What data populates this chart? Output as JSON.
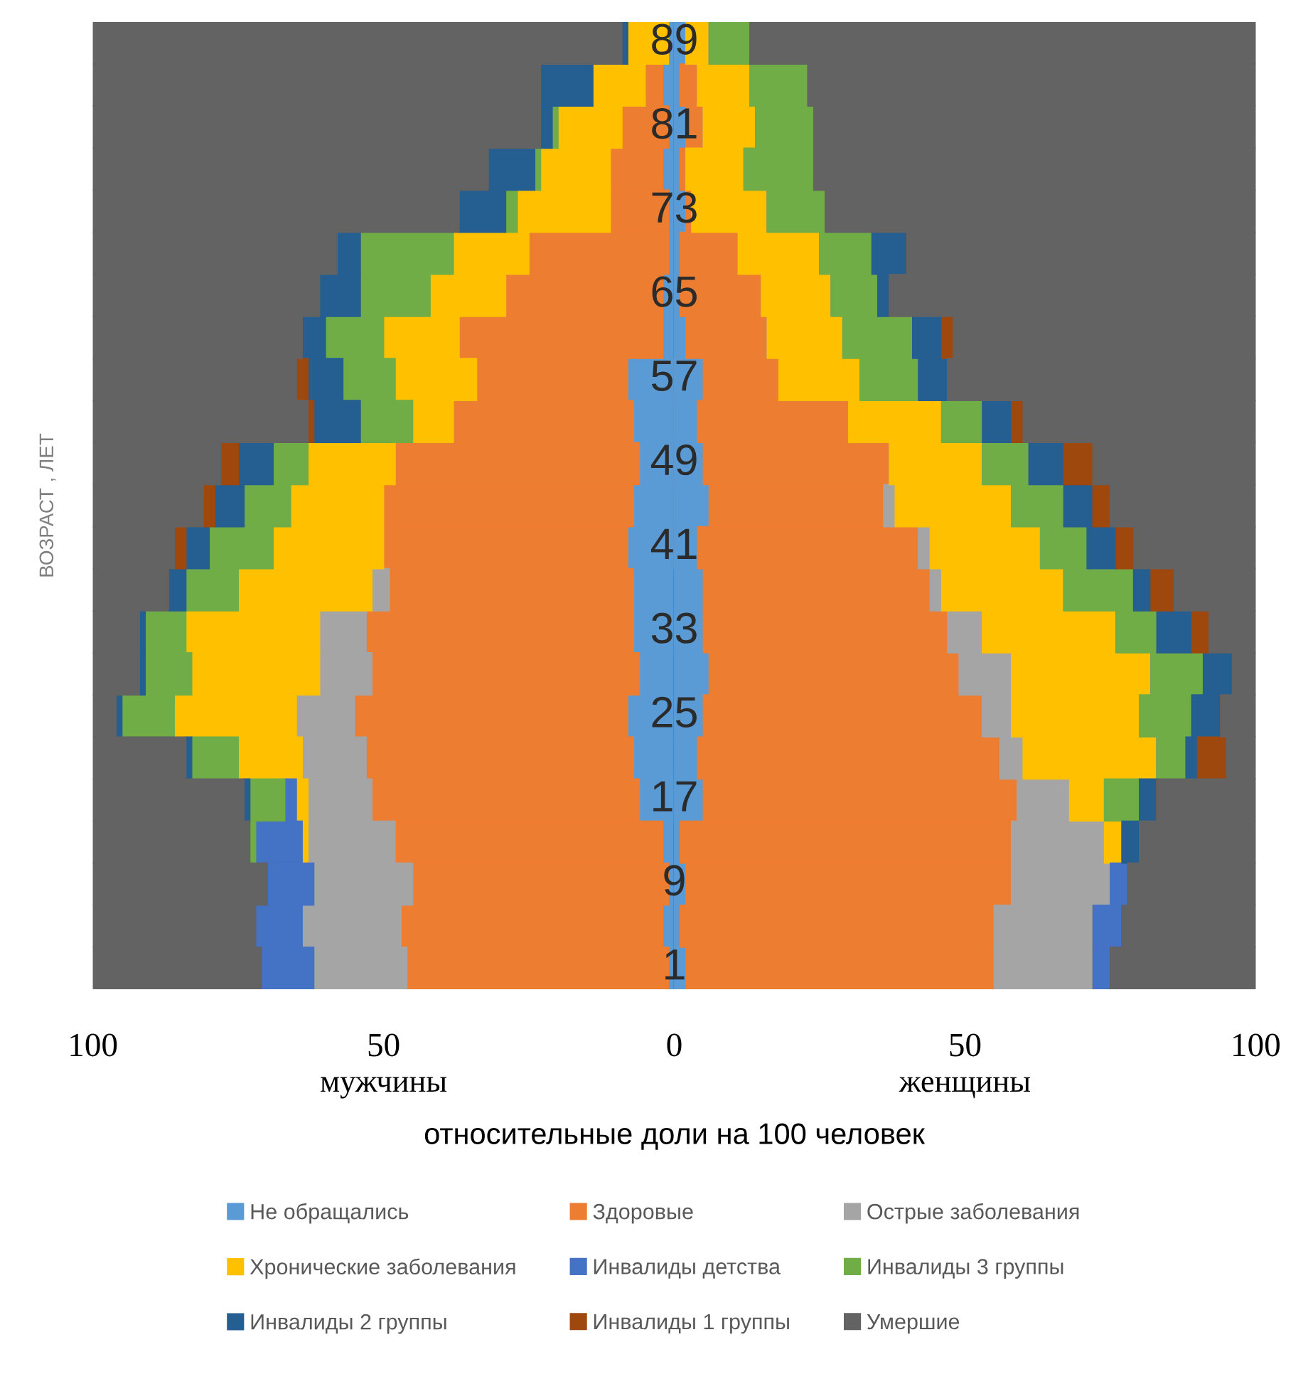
{
  "chart_data": {
    "type": "bar",
    "orientation": "horizontal",
    "stacked": true,
    "xlabel": "относительные доли на 100 человек",
    "ylabel": "ВОЗРАСТ , ЛЕТ",
    "annotations": [
      "мужчины",
      "женщины"
    ],
    "categories": [
      "89",
      null,
      "81",
      null,
      "73",
      null,
      "65",
      null,
      "57",
      null,
      "49",
      null,
      "41",
      null,
      "33",
      null,
      "25",
      null,
      "17",
      null,
      "9",
      null,
      "1"
    ],
    "xlim": [
      -100,
      100
    ],
    "xticks": [
      {
        "value": -100,
        "label": "100"
      },
      {
        "value": -50,
        "label": "50"
      },
      0,
      50,
      100
    ],
    "tick_labels": "x",
    "grid": false,
    "legend": "bottom",
    "series": [
      {
        "name": "Не обращались",
        "color": "#5b9bd5",
        "values": [
          -1,
          -2,
          -1,
          -2,
          -1,
          -1,
          -2,
          -2,
          -8,
          -7,
          -6,
          -7,
          -8,
          -7,
          -7,
          -6,
          -8,
          -7,
          -6,
          -2,
          -1,
          -2,
          -1
        ]
      },
      {
        "name": "Здоровые",
        "color": "#ed7d31",
        "values": [
          0,
          -3,
          -8,
          -9,
          -10,
          -24,
          -27,
          -35,
          -26,
          -31,
          -42,
          -43,
          -42,
          -42,
          -46,
          -46,
          -47,
          -46,
          -46,
          -46,
          -44,
          -45,
          -45
        ]
      },
      {
        "name": "Острые заболевания",
        "color": "#a5a5a5",
        "values": [
          0,
          0,
          0,
          0,
          0,
          0,
          0,
          0,
          0,
          0,
          0,
          0,
          0,
          -3,
          -8,
          -9,
          -10,
          -11,
          -11,
          -15,
          -17,
          -17,
          -16
        ]
      },
      {
        "name": "Хронические заболевания",
        "color": "#ffc000",
        "values": [
          -7,
          -9,
          -11,
          -12,
          -16,
          -13,
          -13,
          -13,
          -14,
          -7,
          -15,
          -16,
          -19,
          -23,
          -23,
          -22,
          -21,
          -11,
          -2,
          -1,
          0,
          0,
          0
        ]
      },
      {
        "name": "Инвалиды детства",
        "color": "#4472c4",
        "values": [
          0,
          0,
          0,
          0,
          0,
          0,
          0,
          0,
          0,
          0,
          0,
          0,
          0,
          0,
          0,
          0,
          0,
          0,
          -2,
          -8,
          -8,
          -8,
          -9
        ]
      },
      {
        "name": "Инвалиды 3 группы",
        "color": "#70ad47",
        "values": [
          0,
          0,
          -1,
          -1,
          -2,
          -16,
          -12,
          -10,
          -9,
          -9,
          -6,
          -8,
          -11,
          -9,
          -7,
          -8,
          -9,
          -8,
          -6,
          -1,
          0,
          0,
          0
        ]
      },
      {
        "name": "Инвалиды 2 группы",
        "color": "#255e91",
        "values": [
          -1,
          -9,
          -2,
          -8,
          -8,
          -4,
          -7,
          -4,
          -6,
          -8,
          -6,
          -5,
          -4,
          -3,
          -1,
          -1,
          -1,
          -1,
          -1,
          0,
          0,
          0,
          0
        ]
      },
      {
        "name": "Инвалиды 1 группы",
        "color": "#9e480e",
        "values": [
          0,
          0,
          0,
          0,
          0,
          0,
          0,
          0,
          -2,
          -1,
          -3,
          -2,
          -2,
          0,
          0,
          0,
          0,
          0,
          0,
          0,
          0,
          0,
          0
        ]
      },
      {
        "name": "Умершие",
        "color": "#636363",
        "values": [
          -91,
          -77,
          -77,
          -68,
          -63,
          -42,
          -39,
          -36,
          -35,
          -37,
          -22,
          -19,
          -14,
          -13,
          -8,
          -8,
          -4,
          -16,
          -26,
          -27,
          -30,
          -28,
          -29
        ]
      },
      {
        "color": "#5b9bd5",
        "values": [
          2,
          1,
          2,
          1,
          2,
          1,
          1,
          2,
          5,
          4,
          5,
          6,
          4,
          5,
          5,
          6,
          5,
          4,
          5,
          1,
          2,
          1,
          2
        ]
      },
      {
        "color": "#ed7d31",
        "values": [
          0,
          3,
          3,
          1,
          1,
          10,
          14,
          14,
          13,
          26,
          32,
          30,
          38,
          39,
          42,
          43,
          48,
          52,
          54,
          57,
          56,
          54,
          53
        ]
      },
      {
        "color": "#a5a5a5",
        "values": [
          0,
          0,
          0,
          0,
          0,
          0,
          0,
          0,
          0,
          0,
          0,
          2,
          2,
          2,
          6,
          9,
          5,
          4,
          9,
          16,
          17,
          17,
          17
        ]
      },
      {
        "color": "#ffc000",
        "values": [
          4,
          9,
          9,
          10,
          13,
          14,
          12,
          13,
          14,
          16,
          16,
          20,
          19,
          21,
          23,
          24,
          22,
          23,
          6,
          3,
          0,
          0,
          0
        ]
      },
      {
        "color": "#4472c4",
        "values": [
          0,
          0,
          0,
          0,
          0,
          0,
          0,
          0,
          0,
          0,
          0,
          0,
          0,
          0,
          0,
          0,
          0,
          0,
          0,
          0,
          3,
          5,
          3
        ]
      },
      {
        "color": "#70ad47",
        "values": [
          7,
          10,
          10,
          12,
          10,
          9,
          8,
          12,
          10,
          7,
          8,
          9,
          8,
          12,
          7,
          9,
          9,
          5,
          6,
          0,
          0,
          0,
          0
        ]
      },
      {
        "color": "#255e91",
        "values": [
          0,
          0,
          0,
          0,
          0,
          6,
          2,
          5,
          5,
          5,
          6,
          5,
          5,
          3,
          6,
          5,
          5,
          2,
          3,
          3,
          0,
          0,
          0
        ]
      },
      {
        "color": "#9e480e",
        "values": [
          0,
          0,
          0,
          0,
          0,
          0,
          0,
          2,
          0,
          2,
          5,
          3,
          3,
          4,
          3,
          0,
          0,
          5,
          0,
          0,
          0,
          0,
          0
        ]
      },
      {
        "color": "#636363",
        "values": [
          87,
          77,
          76,
          76,
          74,
          60,
          63,
          52,
          53,
          40,
          28,
          25,
          21,
          14,
          8,
          4,
          6,
          5,
          17,
          20,
          22,
          23,
          25
        ]
      }
    ]
  }
}
